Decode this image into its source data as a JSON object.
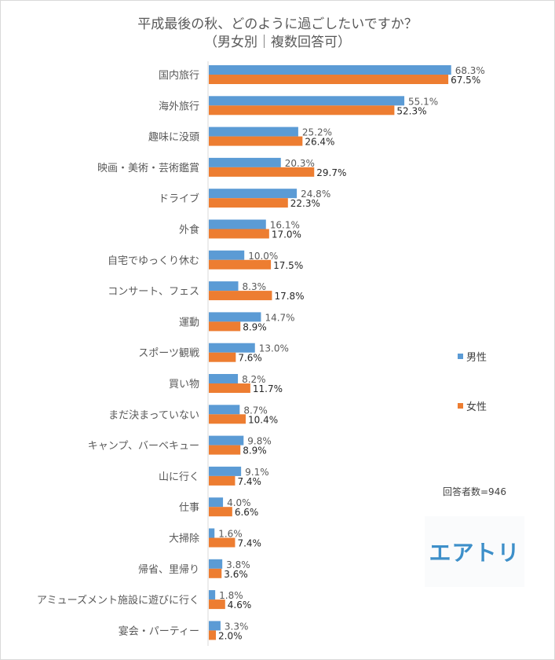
{
  "chart_data": {
    "type": "bar",
    "orientation": "horizontal",
    "title": "平成最後の秋、どのように過ごしたいですか？",
    "subtitle": "（男女別｜複数回答可）",
    "categories": [
      "国内旅行",
      "海外旅行",
      "趣味に没頭",
      "映画・美術・芸術鑑賞",
      "ドライブ",
      "外食",
      "自宅でゆっくり休む",
      "コンサート、フェス",
      "運動",
      "スポーツ観戦",
      "買い物",
      "まだ決まっていない",
      "キャンプ、バーベキュー",
      "山に行く",
      "仕事",
      "大掃除",
      "帰省、里帰り",
      "アミューズメント施設に遊びに行く",
      "宴会・パーティー"
    ],
    "series": [
      {
        "name": "男性",
        "color": "#5B9BD5",
        "values": [
          68.3,
          55.1,
          25.2,
          20.3,
          24.8,
          16.1,
          10.0,
          8.3,
          14.7,
          13.0,
          8.2,
          8.7,
          9.8,
          9.1,
          4.0,
          1.6,
          3.8,
          1.8,
          3.3
        ]
      },
      {
        "name": "女性",
        "color": "#ED7D31",
        "values": [
          67.5,
          52.3,
          26.4,
          29.7,
          22.3,
          17.0,
          17.5,
          17.8,
          8.9,
          7.6,
          11.7,
          10.4,
          8.9,
          7.4,
          6.6,
          7.4,
          3.6,
          4.6,
          2.0
        ]
      }
    ],
    "unit": "%",
    "legend_position": "right",
    "grid": false
  },
  "note": "回答者数=946",
  "logo_text": "エアトリ"
}
